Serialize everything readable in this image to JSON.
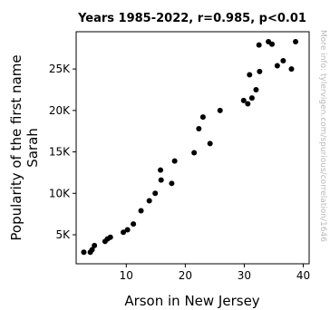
{
  "chart_data": {
    "type": "scatter",
    "title": "Years 1985-2022, r=0.985, p<0.01",
    "xlabel": "Arson in New Jersey",
    "ylabel": [
      "Popularity of the first name",
      "Sarah"
    ],
    "watermark": "More info: tylervigen.com/spurious/correlation/1646",
    "xlim": [
      1.5,
      41
    ],
    "ylim": [
      1500,
      29500
    ],
    "x_ticks": [
      {
        "value": 10,
        "label": "10"
      },
      {
        "value": 20,
        "label": "20"
      },
      {
        "value": 30,
        "label": "30"
      },
      {
        "value": 40,
        "label": "40"
      }
    ],
    "y_ticks": [
      {
        "value": 5000,
        "label": "5K"
      },
      {
        "value": 10000,
        "label": "10K"
      },
      {
        "value": 15000,
        "label": "15K"
      },
      {
        "value": 20000,
        "label": "20K"
      },
      {
        "value": 25000,
        "label": "25K"
      }
    ],
    "grid": false,
    "marker_color": "#000000",
    "points": [
      {
        "x": 2.8,
        "y": 2900
      },
      {
        "x": 3.9,
        "y": 2900
      },
      {
        "x": 4.2,
        "y": 3200
      },
      {
        "x": 4.6,
        "y": 3700
      },
      {
        "x": 6.4,
        "y": 4200
      },
      {
        "x": 6.8,
        "y": 4500
      },
      {
        "x": 7.3,
        "y": 4700
      },
      {
        "x": 9.5,
        "y": 5300
      },
      {
        "x": 10.2,
        "y": 5600
      },
      {
        "x": 11.2,
        "y": 6300
      },
      {
        "x": 12.5,
        "y": 7900
      },
      {
        "x": 13.9,
        "y": 9100
      },
      {
        "x": 14.9,
        "y": 10000
      },
      {
        "x": 15.9,
        "y": 11600
      },
      {
        "x": 15.8,
        "y": 12800
      },
      {
        "x": 17.7,
        "y": 11200
      },
      {
        "x": 18.2,
        "y": 13900
      },
      {
        "x": 21.5,
        "y": 14900
      },
      {
        "x": 22.3,
        "y": 17800
      },
      {
        "x": 23.0,
        "y": 19200
      },
      {
        "x": 24.2,
        "y": 16000
      },
      {
        "x": 25.9,
        "y": 20000
      },
      {
        "x": 29.9,
        "y": 21200
      },
      {
        "x": 30.6,
        "y": 20800
      },
      {
        "x": 31.3,
        "y": 21500
      },
      {
        "x": 32.0,
        "y": 22500
      },
      {
        "x": 30.9,
        "y": 24300
      },
      {
        "x": 32.6,
        "y": 24700
      },
      {
        "x": 32.5,
        "y": 27900
      },
      {
        "x": 34.1,
        "y": 28300
      },
      {
        "x": 34.7,
        "y": 28000
      },
      {
        "x": 35.6,
        "y": 25400
      },
      {
        "x": 36.6,
        "y": 26000
      },
      {
        "x": 38.0,
        "y": 25000
      },
      {
        "x": 38.7,
        "y": 28300
      }
    ]
  }
}
